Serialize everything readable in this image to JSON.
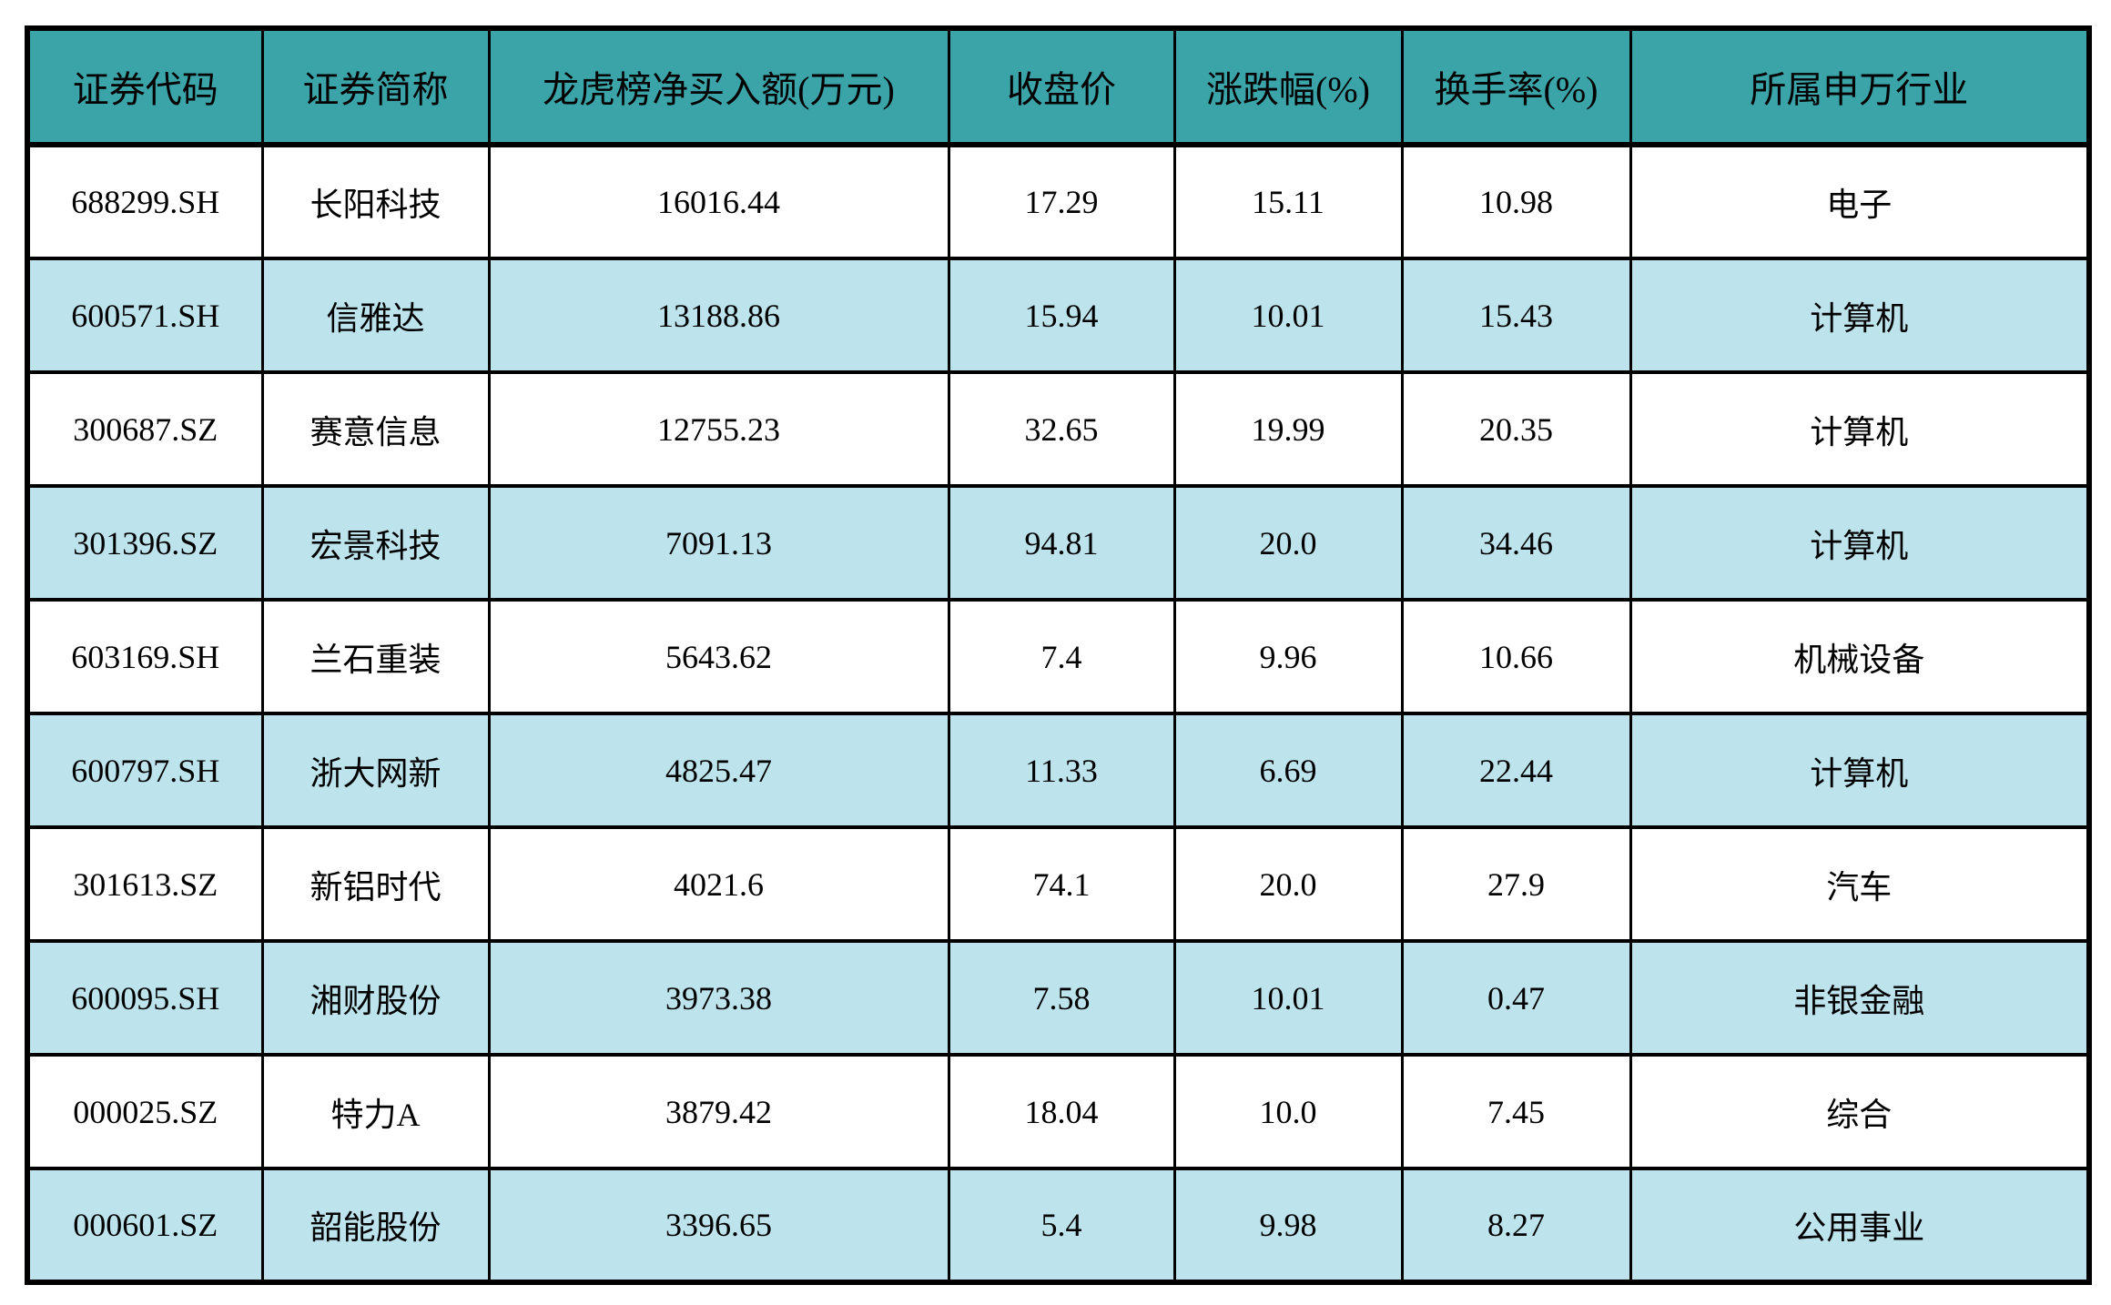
{
  "colors": {
    "header_bg": "#3BA4A8",
    "row_bg": "#FFFFFF",
    "row_alt_bg": "#BDE3EC",
    "border": "#000000",
    "text": "#000000"
  },
  "chart_data": {
    "type": "table",
    "columns": [
      "证券代码",
      "证券简称",
      "龙虎榜净买入额(万元)",
      "收盘价",
      "涨跌幅(%)",
      "换手率(%)",
      "所属申万行业"
    ],
    "rows": [
      [
        "688299.SH",
        "长阳科技",
        "16016.44",
        "17.29",
        "15.11",
        "10.98",
        "电子"
      ],
      [
        "600571.SH",
        "信雅达",
        "13188.86",
        "15.94",
        "10.01",
        "15.43",
        "计算机"
      ],
      [
        "300687.SZ",
        "赛意信息",
        "12755.23",
        "32.65",
        "19.99",
        "20.35",
        "计算机"
      ],
      [
        "301396.SZ",
        "宏景科技",
        "7091.13",
        "94.81",
        "20.0",
        "34.46",
        "计算机"
      ],
      [
        "603169.SH",
        "兰石重装",
        "5643.62",
        "7.4",
        "9.96",
        "10.66",
        "机械设备"
      ],
      [
        "600797.SH",
        "浙大网新",
        "4825.47",
        "11.33",
        "6.69",
        "22.44",
        "计算机"
      ],
      [
        "301613.SZ",
        "新铝时代",
        "4021.6",
        "74.1",
        "20.0",
        "27.9",
        "汽车"
      ],
      [
        "600095.SH",
        "湘财股份",
        "3973.38",
        "7.58",
        "10.01",
        "0.47",
        "非银金融"
      ],
      [
        "000025.SZ",
        "特力A",
        "3879.42",
        "18.04",
        "10.0",
        "7.45",
        "综合"
      ],
      [
        "000601.SZ",
        "韶能股份",
        "3396.65",
        "5.4",
        "9.98",
        "8.27",
        "公用事业"
      ]
    ]
  }
}
